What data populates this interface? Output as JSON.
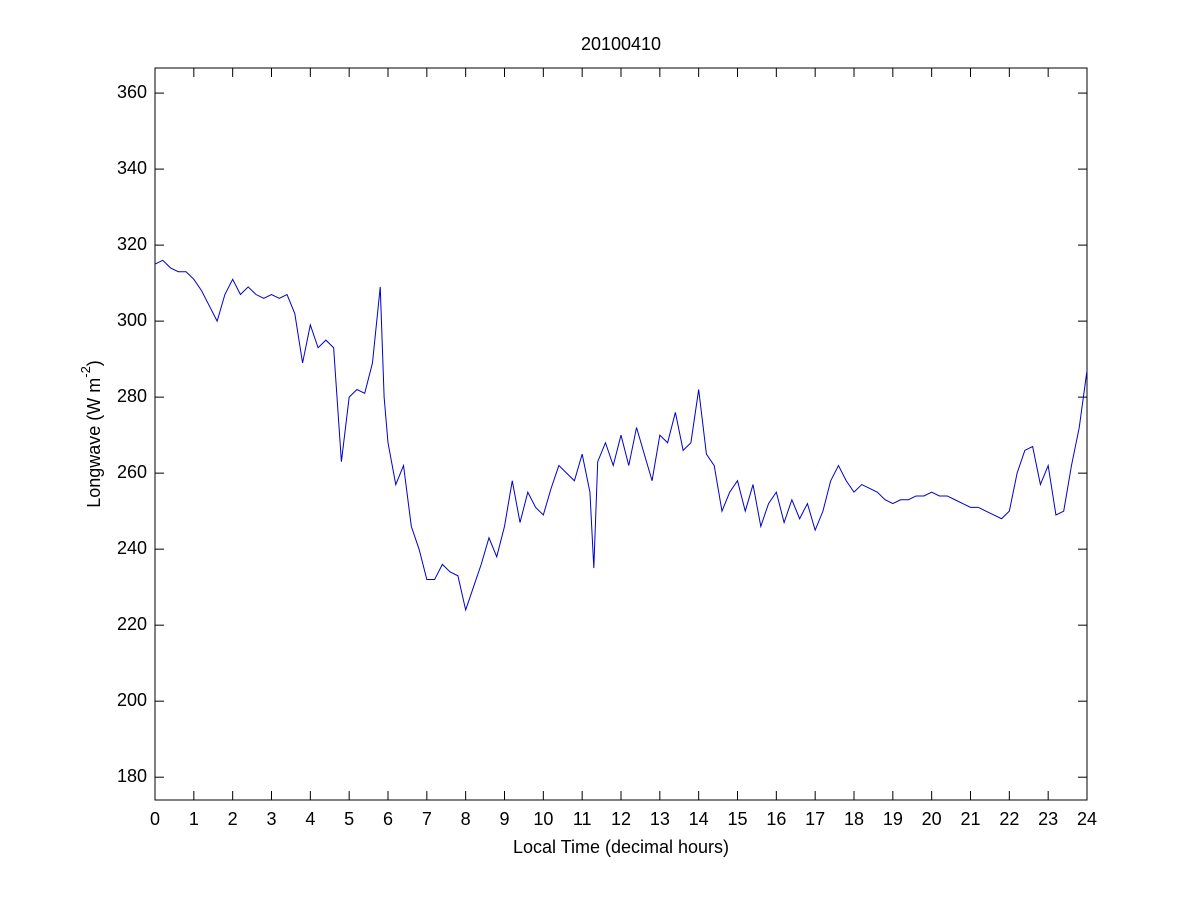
{
  "chart_data": {
    "type": "line",
    "title": "20100410",
    "xlabel": "Local Time (decimal hours)",
    "ylabel": "Longwave (W m",
    "ylabel_superscript": "-2",
    "ylabel_end": ")",
    "xlim": [
      0,
      24
    ],
    "ylim": [
      174,
      366.6
    ],
    "xticks": [
      0,
      1,
      2,
      3,
      4,
      5,
      6,
      7,
      8,
      9,
      10,
      11,
      12,
      13,
      14,
      15,
      16,
      17,
      18,
      19,
      20,
      21,
      22,
      23,
      24
    ],
    "yticks": [
      180,
      200,
      220,
      240,
      260,
      280,
      300,
      320,
      340,
      360
    ],
    "grid": false,
    "series": [
      {
        "color": "#0000cc",
        "x": [
          0,
          0.2,
          0.4,
          0.6,
          0.8,
          1.0,
          1.2,
          1.4,
          1.6,
          1.8,
          2.0,
          2.2,
          2.4,
          2.6,
          2.8,
          3.0,
          3.2,
          3.4,
          3.6,
          3.8,
          4.0,
          4.2,
          4.4,
          4.6,
          4.8,
          5.0,
          5.2,
          5.4,
          5.6,
          5.8,
          5.9,
          6.0,
          6.2,
          6.4,
          6.6,
          6.8,
          7.0,
          7.2,
          7.4,
          7.6,
          7.8,
          8.0,
          8.2,
          8.4,
          8.6,
          8.8,
          9.0,
          9.2,
          9.4,
          9.6,
          9.8,
          10.0,
          10.2,
          10.4,
          10.6,
          10.8,
          11.0,
          11.2,
          11.3,
          11.4,
          11.6,
          11.8,
          12.0,
          12.2,
          12.4,
          12.6,
          12.8,
          13.0,
          13.2,
          13.4,
          13.6,
          13.8,
          14.0,
          14.2,
          14.4,
          14.6,
          14.8,
          15.0,
          15.2,
          15.4,
          15.6,
          15.8,
          16.0,
          16.2,
          16.4,
          16.6,
          16.8,
          17.0,
          17.2,
          17.4,
          17.6,
          17.8,
          18.0,
          18.2,
          18.4,
          18.6,
          18.8,
          19.0,
          19.2,
          19.4,
          19.6,
          19.8,
          20.0,
          20.2,
          20.4,
          20.6,
          20.8,
          21.0,
          21.2,
          21.4,
          21.6,
          21.8,
          22.0,
          22.2,
          22.4,
          22.6,
          22.8,
          23.0,
          23.2,
          23.4,
          23.6,
          23.8,
          24.0
        ],
        "values": [
          315,
          316,
          314,
          313,
          313,
          311,
          308,
          304,
          300,
          307,
          311,
          307,
          309,
          307,
          306,
          307,
          306,
          307,
          302,
          289,
          299,
          293,
          295,
          293,
          263,
          280,
          282,
          281,
          289,
          309,
          280,
          268,
          257,
          262,
          246,
          240,
          232,
          232,
          236,
          234,
          233,
          224,
          230,
          236,
          243,
          238,
          246,
          258,
          247,
          255,
          251,
          249,
          256,
          262,
          260,
          258,
          265,
          255,
          235,
          263,
          268,
          262,
          270,
          262,
          272,
          265,
          258,
          270,
          268,
          276,
          266,
          268,
          282,
          265,
          262,
          250,
          255,
          258,
          250,
          257,
          246,
          252,
          255,
          247,
          253,
          248,
          252,
          245,
          250,
          258,
          262,
          258,
          255,
          257,
          256,
          255,
          253,
          252,
          253,
          253,
          254,
          254,
          255,
          254,
          254,
          253,
          252,
          251,
          251,
          250,
          249,
          248,
          250,
          260,
          266,
          267,
          257,
          262,
          249,
          250,
          262,
          272,
          287
        ]
      }
    ]
  }
}
